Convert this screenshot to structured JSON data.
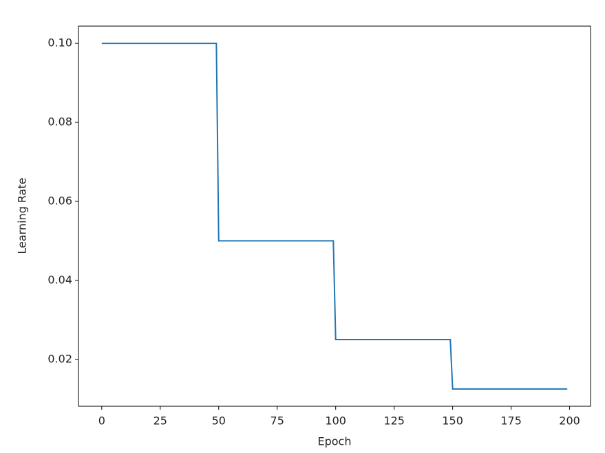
{
  "chart_data": {
    "type": "line",
    "x_label": "Epoch",
    "y_label": "Learning Rate",
    "x": [
      0,
      49,
      50,
      99,
      100,
      149,
      150,
      199
    ],
    "series": [
      {
        "name": "lr",
        "color": "#1f77b4",
        "values": [
          0.1,
          0.1,
          0.05,
          0.05,
          0.025,
          0.025,
          0.0125,
          0.0125
        ]
      }
    ],
    "xlim": [
      -9.95,
      208.95
    ],
    "xticks": [
      0,
      25,
      50,
      75,
      100,
      125,
      150,
      175,
      200
    ],
    "ylim": [
      0.008125,
      0.104375
    ],
    "yticks": [
      0.02,
      0.04,
      0.06,
      0.08,
      {
        "value": 0.1,
        "label": "0.10"
      }
    ],
    "legend": false
  }
}
